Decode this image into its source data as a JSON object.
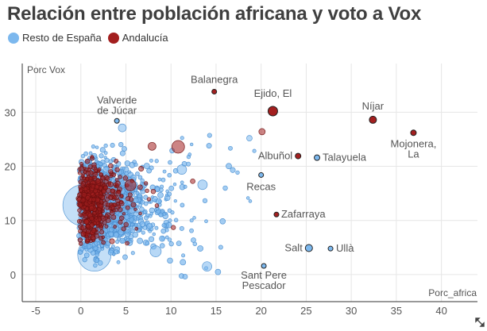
{
  "title": "Relación entre población africana y voto a Vox",
  "legend": [
    {
      "label": "Resto de España",
      "color": "#7cb8ee"
    },
    {
      "label": "Andalucía",
      "color": "#a31f1f"
    }
  ],
  "chart_data": {
    "type": "scatter",
    "title": "Relación entre población africana y voto a Vox",
    "xlabel": "Porc_africa",
    "ylabel": "Porc Vox",
    "xlim": [
      -6.5,
      44
    ],
    "ylim": [
      -5,
      39
    ],
    "xticks": [
      -5,
      0,
      5,
      10,
      15,
      20,
      25,
      30,
      35,
      40
    ],
    "yticks": [
      0,
      10,
      20,
      30
    ],
    "series": [
      {
        "name": "Resto de España",
        "color": "#7cb8ee",
        "stroke": "#4a8fd0"
      },
      {
        "name": "Andalucía",
        "color": "#a31f1f",
        "stroke": "#6e1010"
      }
    ],
    "labeled_points": [
      {
        "name": "Balanegra",
        "x": 14.8,
        "y": 33.8,
        "series": "Andalucía",
        "size": 3
      },
      {
        "name": "Ejido, El",
        "x": 21.3,
        "y": 30.2,
        "series": "Andalucía",
        "size": 6
      },
      {
        "name": "Níjar",
        "x": 32.4,
        "y": 28.6,
        "series": "Andalucía",
        "size": 4.5
      },
      {
        "name": "Mojonera, La",
        "x": 36.9,
        "y": 26.2,
        "series": "Andalucía",
        "size": 3.5
      },
      {
        "name": "Valverde de Júcar",
        "x": 4.0,
        "y": 28.4,
        "series": "Resto de España",
        "size": 3
      },
      {
        "name": "Albuñol",
        "x": 24.1,
        "y": 21.9,
        "series": "Andalucía",
        "size": 3.5
      },
      {
        "name": "Talayuela",
        "x": 26.2,
        "y": 21.6,
        "series": "Resto de España",
        "size": 3.5
      },
      {
        "name": "Recas",
        "x": 20.0,
        "y": 18.4,
        "series": "Resto de España",
        "size": 3
      },
      {
        "name": "Zafarraya",
        "x": 21.7,
        "y": 11.1,
        "series": "Andalucía",
        "size": 3
      },
      {
        "name": "Salt",
        "x": 25.3,
        "y": 4.9,
        "series": "Resto de España",
        "size": 4.5
      },
      {
        "name": "Ullà",
        "x": 27.7,
        "y": 4.8,
        "series": "Resto de España",
        "size": 3
      },
      {
        "name": "Sant Pere Pescador",
        "x": 20.3,
        "y": 1.6,
        "series": "Resto de España",
        "size": 3
      }
    ],
    "big_points": [
      {
        "x": 0.3,
        "y": 12.8,
        "series": "Resto de España",
        "size": 26
      },
      {
        "x": 1.5,
        "y": 3.7,
        "series": "Resto de España",
        "size": 21
      },
      {
        "x": 10.8,
        "y": 23.6,
        "series": "Andalucía",
        "size": 8
      },
      {
        "x": 13.5,
        "y": 16.6,
        "series": "Resto de España",
        "size": 6
      },
      {
        "x": 11.2,
        "y": 19.4,
        "series": "Resto de España",
        "size": 6
      },
      {
        "x": 8.3,
        "y": 4.3,
        "series": "Resto de España",
        "size": 7
      },
      {
        "x": 14.0,
        "y": 1.5,
        "series": "Resto de España",
        "size": 6
      },
      {
        "x": 5.5,
        "y": 16.5,
        "series": "Andalucía",
        "size": 7
      },
      {
        "x": 7.9,
        "y": 23.7,
        "series": "Andalucía",
        "size": 5
      },
      {
        "x": 4.6,
        "y": 27.1,
        "series": "Resto de España",
        "size": 5
      },
      {
        "x": 20.1,
        "y": 26.4,
        "series": "Andalucía",
        "size": 4
      },
      {
        "x": 18.7,
        "y": 25.2,
        "series": "Resto de España",
        "size": 3.5
      }
    ],
    "clusters": [
      {
        "series": "Resto de España",
        "n": 1700,
        "xmean": 0.9,
        "xscale": 3.1,
        "xmax": 19,
        "ymin": -0.5,
        "ymax": 25.8,
        "size_min": 1.8,
        "size_max": 3.6,
        "seed": 17
      },
      {
        "series": "Andalucía",
        "n": 620,
        "xmean": 0.6,
        "xscale": 1.9,
        "xmax": 14,
        "ymin": 3,
        "ymax": 24.5,
        "size_min": 1.8,
        "size_max": 3.2,
        "seed": 53
      }
    ]
  }
}
